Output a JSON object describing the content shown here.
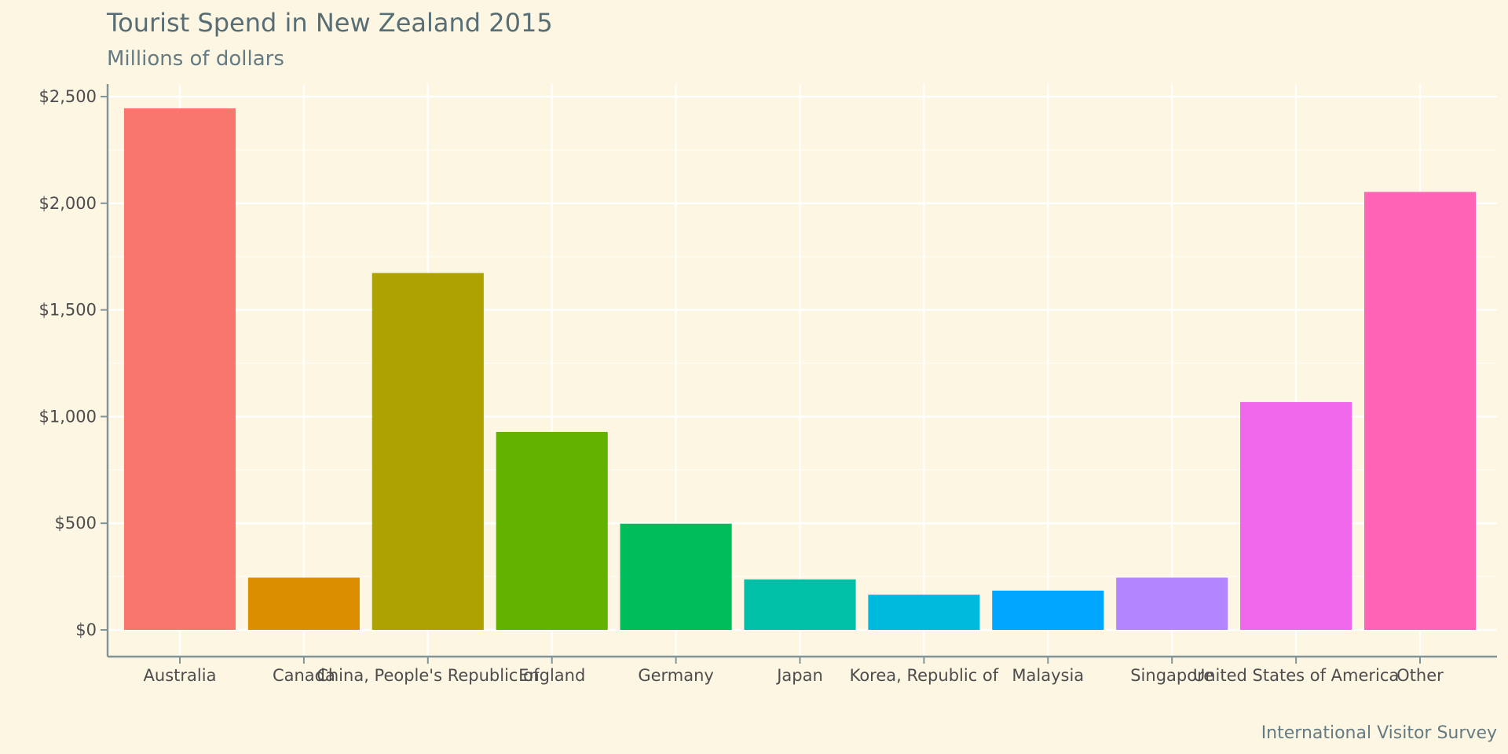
{
  "chart_data": {
    "type": "bar",
    "title": "Tourist Spend in New Zealand 2015",
    "subtitle": "Millions of dollars",
    "caption": "International Visitor Survey",
    "xlabel": "",
    "ylabel": "",
    "categories": [
      "Australia",
      "Canada",
      "China, People's Republic of",
      "England",
      "Germany",
      "Japan",
      "Korea, Republic of",
      "Malaysia",
      "Singapore",
      "United States of America",
      "Other"
    ],
    "values": [
      2445,
      245,
      1673,
      928,
      498,
      237,
      165,
      184,
      245,
      1068,
      2053
    ],
    "colors": [
      "#F8766D",
      "#DB8E00",
      "#AEA200",
      "#64B200",
      "#00BD5C",
      "#00C1A7",
      "#00BADE",
      "#00A6FF",
      "#B385FF",
      "#EF67EB",
      "#FF63B6"
    ],
    "ylim": [
      0,
      2500
    ],
    "yticks": [
      0,
      500,
      1000,
      1500,
      2000,
      2500
    ],
    "ytick_labels": [
      "$0",
      "$500",
      "$1,000",
      "$1,500",
      "$2,000",
      "$2,500"
    ],
    "grid": true,
    "legend": "none"
  }
}
